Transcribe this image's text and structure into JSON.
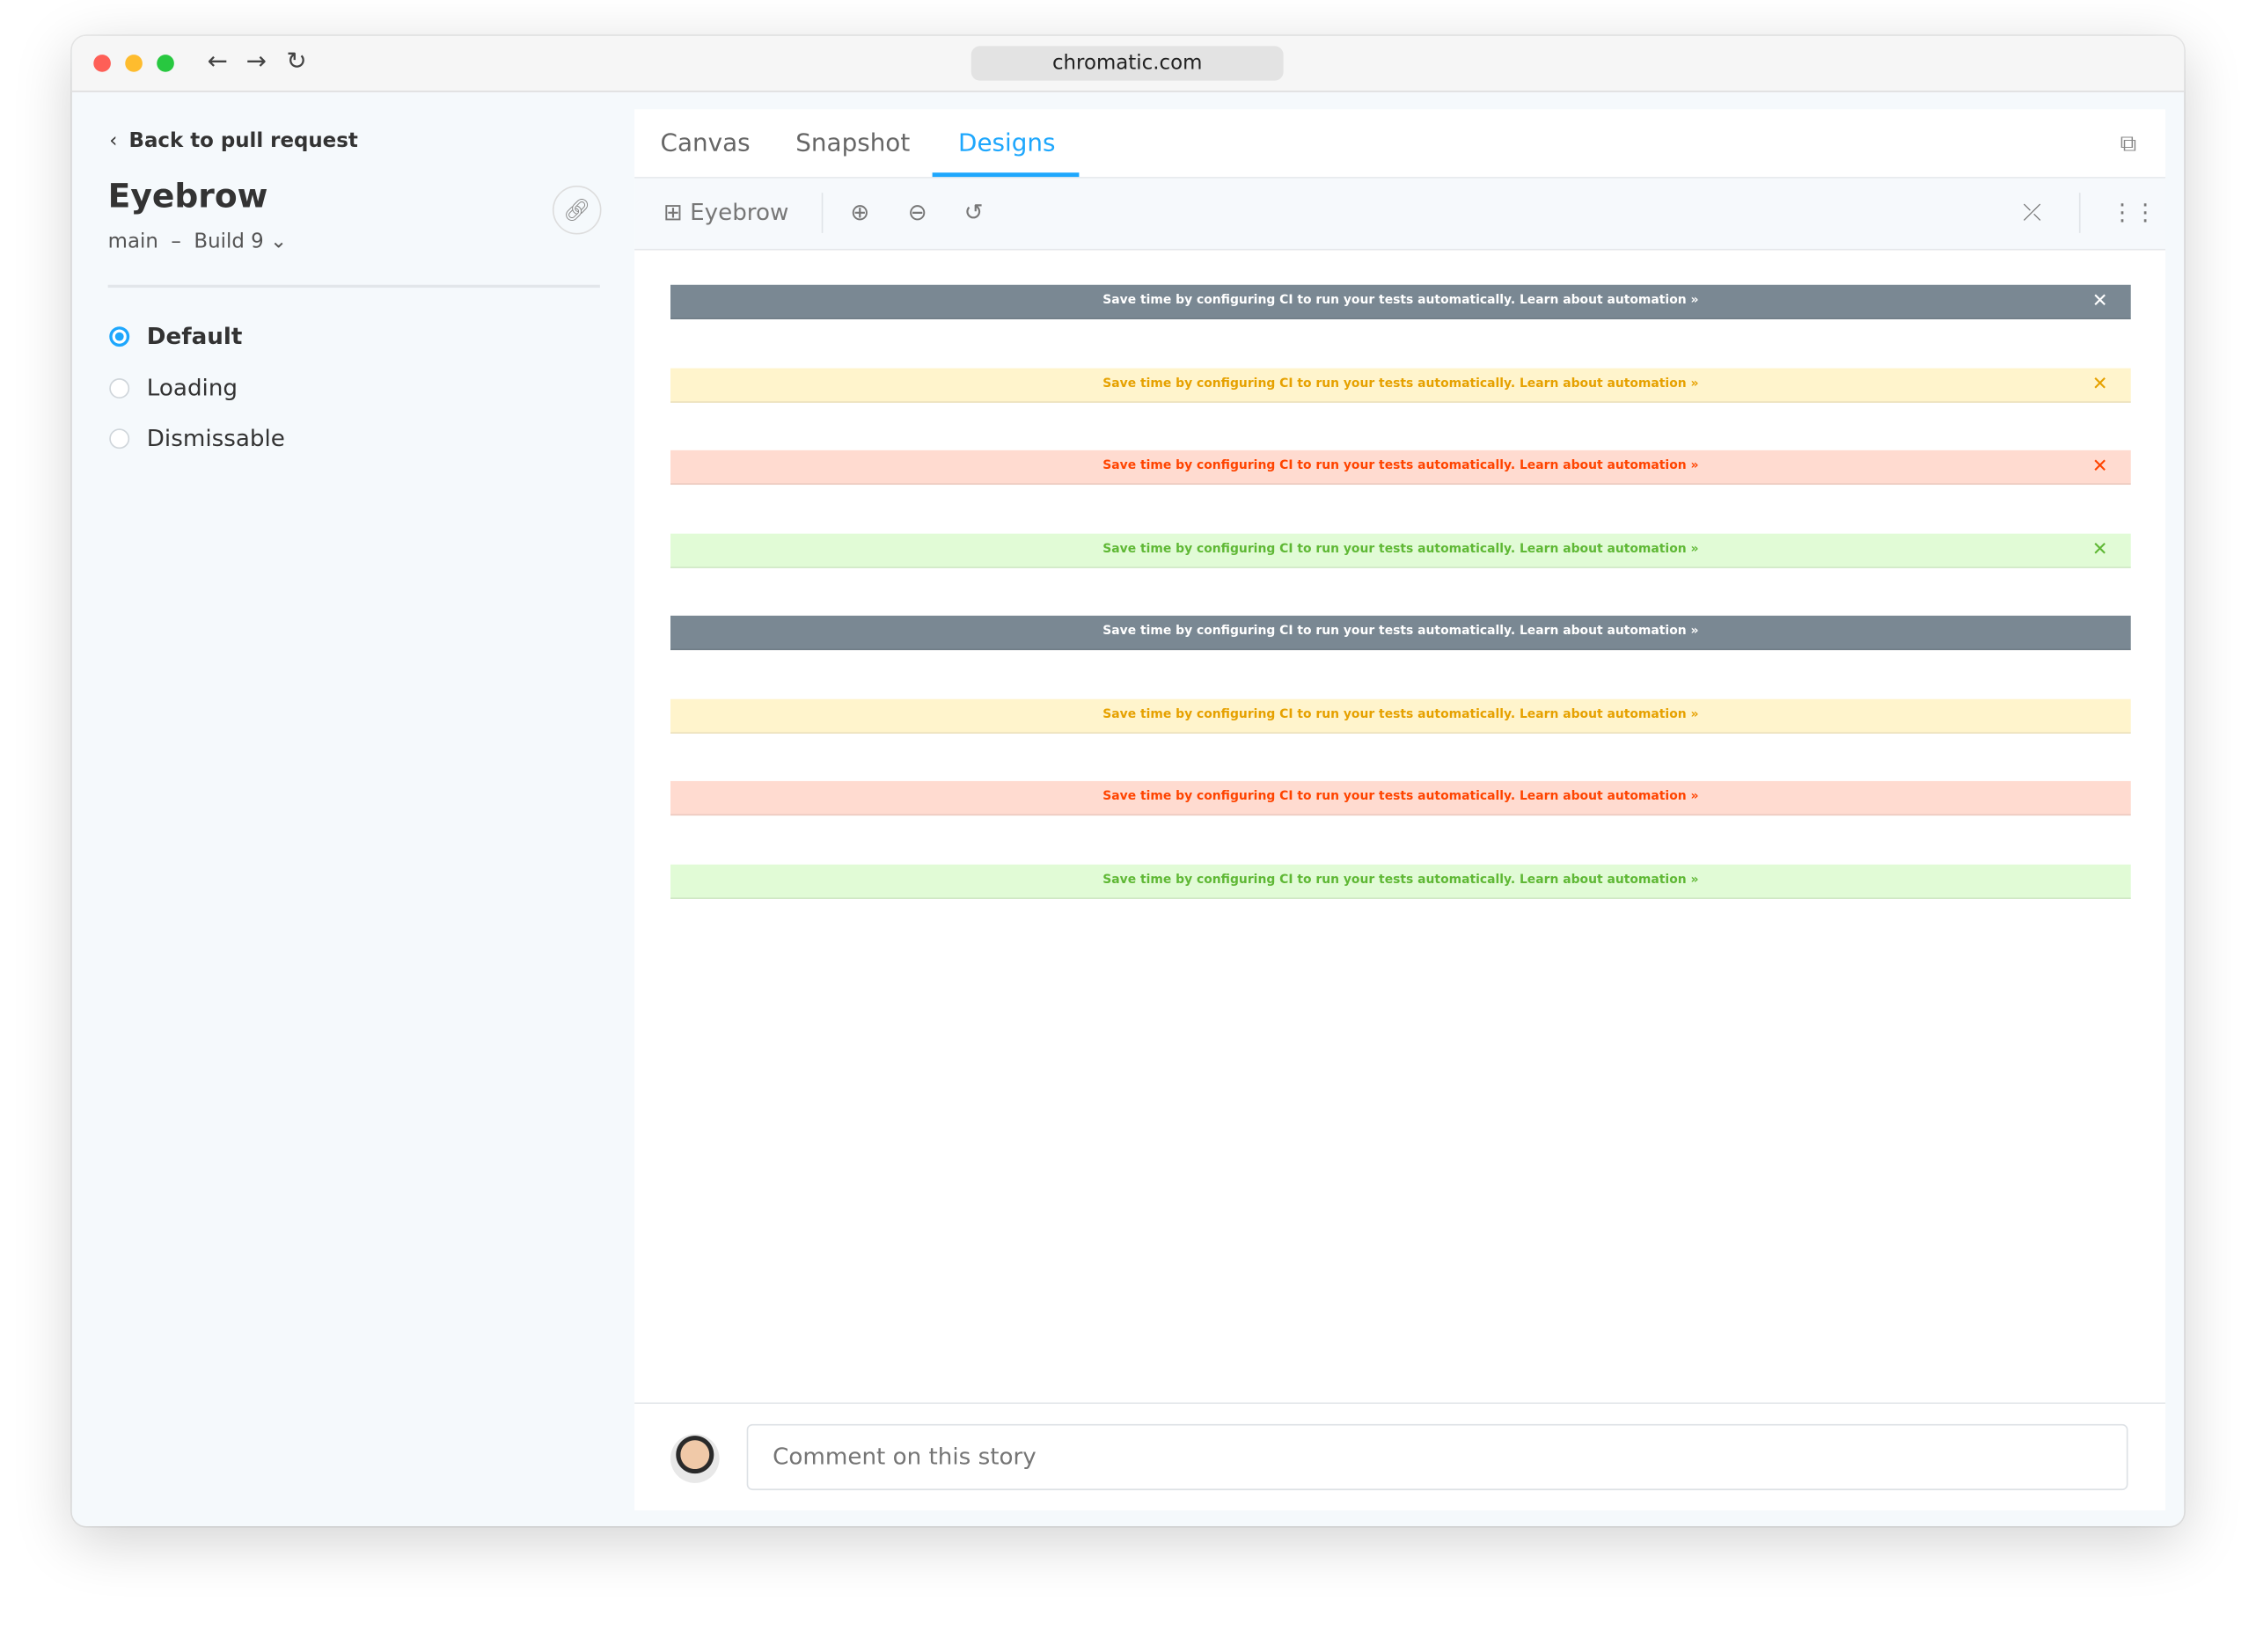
{
  "browser": {
    "url": "chromatic.com"
  },
  "sidebar": {
    "back_label": "Back to pull request",
    "title": "Eyebrow",
    "branch": "main",
    "separator": "–",
    "build": "Build 9",
    "stories": [
      {
        "label": "Default",
        "selected": true
      },
      {
        "label": "Loading",
        "selected": false
      },
      {
        "label": "Dismissable",
        "selected": false
      }
    ]
  },
  "tabs": [
    {
      "label": "Canvas"
    },
    {
      "label": "Snapshot"
    },
    {
      "label": "Designs",
      "active": true
    }
  ],
  "toolbar": {
    "component": "Eyebrow"
  },
  "banners": [
    {
      "text": "Save time by configuring CI to run your tests automatically. Learn about automation »",
      "bg": "#7a8893",
      "fg": "#ffffff",
      "close": "✕"
    },
    {
      "text": "Save time by configuring CI to run your tests automatically. Learn about automation »",
      "bg": "#fff4cc",
      "fg": "#e6a100",
      "close": "✕"
    },
    {
      "text": "Save time by configuring CI to run your tests automatically. Learn about automation »",
      "bg": "#ffdbd0",
      "fg": "#ff4400",
      "close": "✕"
    },
    {
      "text": "Save time by configuring CI to run your tests automatically. Learn about automation »",
      "bg": "#e1fbd6",
      "fg": "#5fb835",
      "close": "✕"
    },
    {
      "text": "Save time by configuring CI to run your tests automatically. Learn about automation »",
      "bg": "#7a8893",
      "fg": "#ffffff"
    },
    {
      "text": "Save time by configuring CI to run your tests automatically. Learn about automation »",
      "bg": "#fff4cc",
      "fg": "#e6a100"
    },
    {
      "text": "Save time by configuring CI to run your tests automatically. Learn about automation »",
      "bg": "#ffdbd0",
      "fg": "#ff4400"
    },
    {
      "text": "Save time by configuring CI to run your tests automatically. Learn about automation »",
      "bg": "#e1fbd6",
      "fg": "#5fb835"
    }
  ],
  "comment": {
    "placeholder": "Comment on this story"
  },
  "colors": {
    "accent": "#1ea7fd"
  }
}
